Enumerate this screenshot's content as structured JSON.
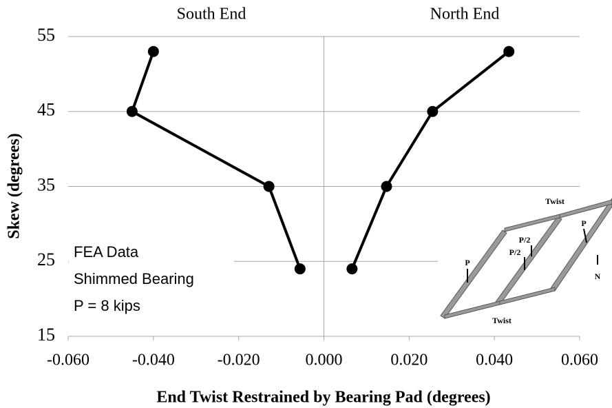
{
  "chart_data": {
    "type": "line",
    "xlabel": "End Twist  Restrained by Bearing Pad (degrees)",
    "ylabel": "Skew (degrees)",
    "xlim": [
      -0.06,
      0.06
    ],
    "xticks": [
      {
        "value": -0.06,
        "label": "-0.060"
      },
      {
        "value": -0.04,
        "label": "-0.040"
      },
      {
        "value": -0.02,
        "label": "-0.020"
      },
      {
        "value": 0,
        "label": "0.000"
      },
      {
        "value": 0.02,
        "label": "0.020"
      },
      {
        "value": 0.04,
        "label": "0.040"
      },
      {
        "value": 0.06,
        "label": "0.060"
      }
    ],
    "ylim": [
      15,
      55
    ],
    "yticks": [
      15,
      25,
      35,
      45,
      55
    ],
    "grid": true,
    "series": [
      {
        "name": "South End",
        "color": "#000000",
        "x": [
          -0.0056,
          -0.0129,
          -0.045,
          -0.04
        ],
        "values": [
          24,
          35,
          45,
          53
        ]
      },
      {
        "name": "North End",
        "color": "#000000",
        "x": [
          0.0066,
          0.0147,
          0.0255,
          0.0434
        ],
        "values": [
          24,
          35,
          45,
          53
        ]
      }
    ],
    "annotations": [
      "FEA Data",
      "Shimmed Bearing",
      "P = 8 kips"
    ],
    "inset_labels": [
      "Twist",
      "P",
      "P/2",
      "P/2",
      "P",
      "N",
      "Twist"
    ]
  }
}
